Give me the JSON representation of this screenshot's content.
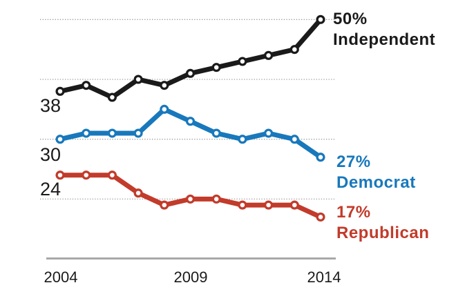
{
  "chart_data": {
    "type": "line",
    "x": [
      2004,
      2005,
      2006,
      2007,
      2008,
      2009,
      2010,
      2011,
      2012,
      2013,
      2014
    ],
    "x_tick_labels": [
      "2004",
      "2009",
      "2014"
    ],
    "y_gridlines": [
      20,
      30,
      40,
      50
    ],
    "grid": "horizontal dotted",
    "legend_position": "labels at right end of each line",
    "series": [
      {
        "name": "Independent",
        "color": "#1a1a1a",
        "start_label": "38",
        "end_label": "50%",
        "values": [
          38,
          39,
          37,
          40,
          39,
          41,
          42,
          43,
          44,
          45,
          50
        ]
      },
      {
        "name": "Democrat",
        "color": "#1878bc",
        "start_label": "30",
        "end_label": "27%",
        "values": [
          30,
          31,
          31,
          31,
          35,
          33,
          31,
          30,
          31,
          30,
          27
        ]
      },
      {
        "name": "Republican",
        "color": "#c23b2b",
        "start_label": "24",
        "end_label": "17%",
        "values": [
          24,
          24,
          24,
          21,
          19,
          20,
          20,
          19,
          19,
          19,
          17
        ]
      }
    ],
    "colors": {
      "gridline": "#9a9a9a",
      "axis": "#a8a8a8",
      "marker_fill": "#ffffff"
    }
  }
}
